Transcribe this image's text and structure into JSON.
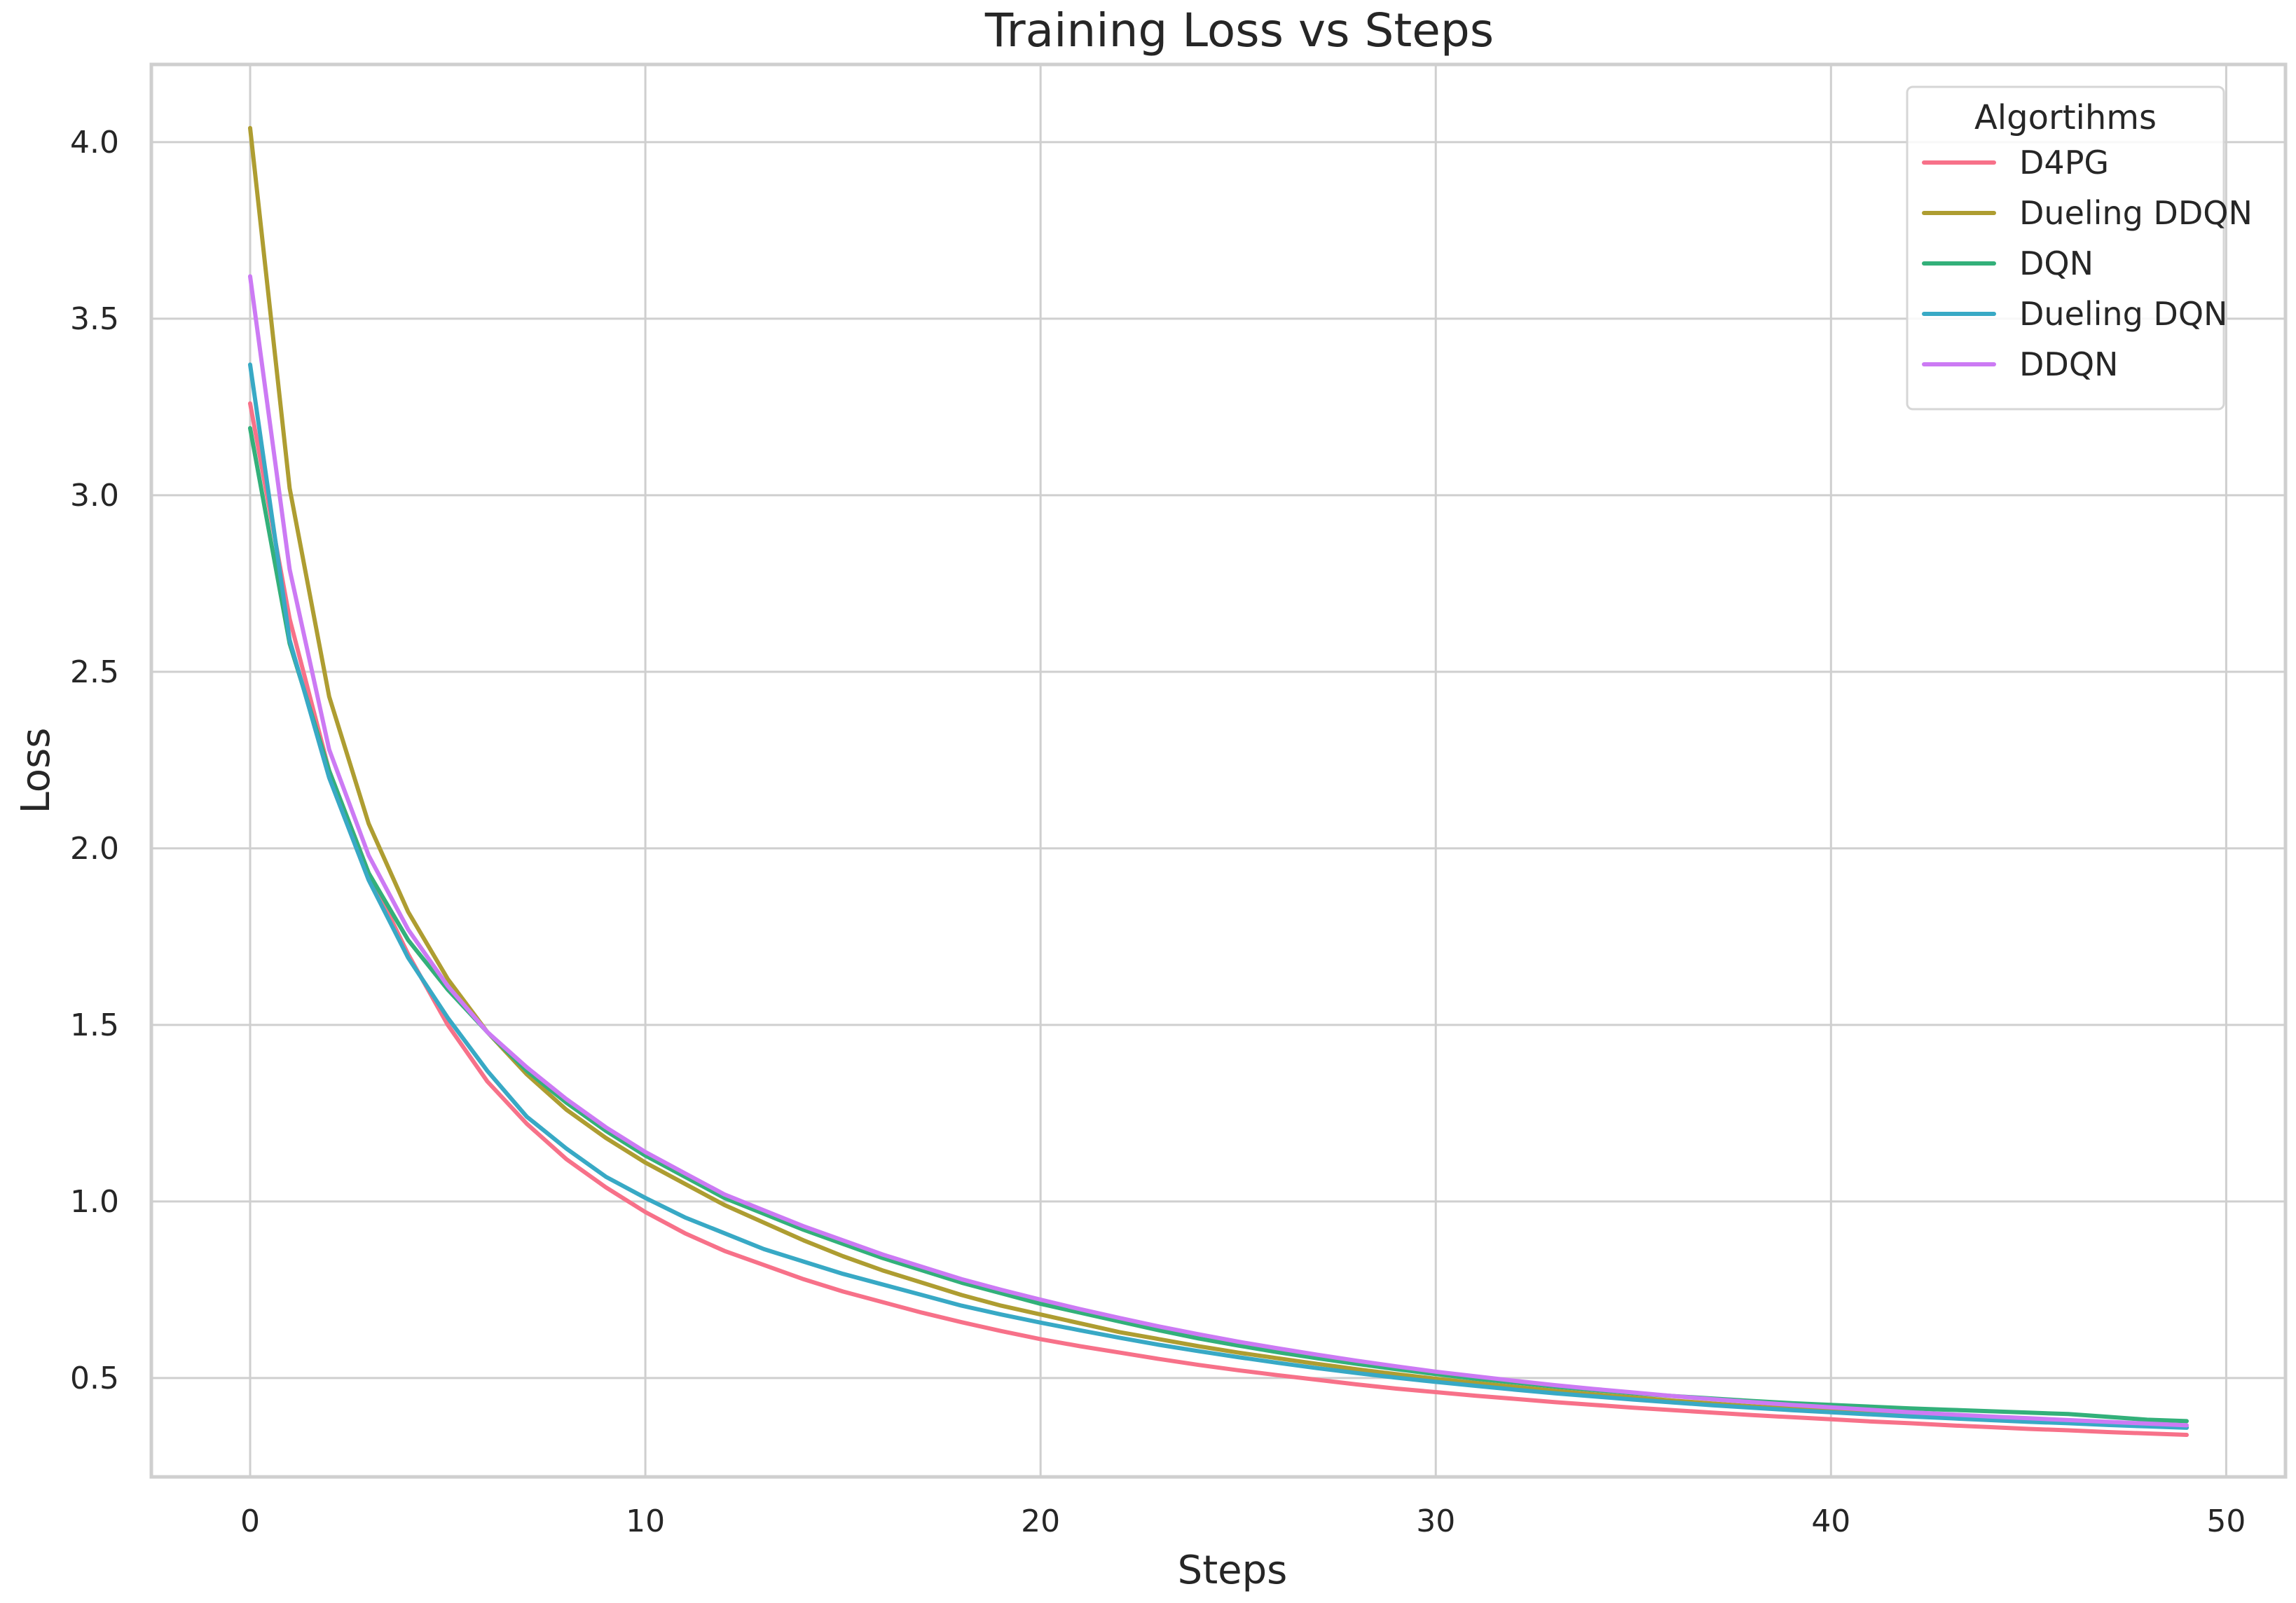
{
  "chart_data": {
    "type": "line",
    "title": "Training Loss vs Steps",
    "xlabel": "Steps",
    "ylabel": "Loss",
    "xlim": [
      -2.5,
      51.5
    ],
    "ylim": [
      0.22,
      4.22
    ],
    "xticks": [
      0,
      10,
      20,
      30,
      40,
      50
    ],
    "yticks": [
      0.5,
      1.0,
      1.5,
      2.0,
      2.5,
      3.0,
      3.5,
      4.0
    ],
    "xtick_labels": [
      "0",
      "10",
      "20",
      "30",
      "40",
      "50"
    ],
    "ytick_labels": [
      "0.5",
      "1.0",
      "1.5",
      "2.0",
      "2.5",
      "3.0",
      "3.5",
      "4.0"
    ],
    "grid": true,
    "legend_title": "Algortihms",
    "legend_position": "top-right",
    "x": [
      0,
      1,
      2,
      3,
      4,
      5,
      6,
      7,
      8,
      9,
      10,
      11,
      12,
      13,
      14,
      15,
      16,
      17,
      18,
      19,
      20,
      21,
      22,
      23,
      24,
      25,
      26,
      27,
      28,
      29,
      30,
      31,
      32,
      33,
      34,
      35,
      36,
      37,
      38,
      39,
      40,
      41,
      42,
      43,
      44,
      45,
      46,
      47,
      48,
      49
    ],
    "series": [
      {
        "name": "D4PG",
        "color": "#f77189",
        "values": [
          3.26,
          2.65,
          2.22,
          1.93,
          1.7,
          1.5,
          1.34,
          1.22,
          1.12,
          1.04,
          0.97,
          0.91,
          0.86,
          0.82,
          0.78,
          0.745,
          0.715,
          0.685,
          0.658,
          0.633,
          0.61,
          0.59,
          0.572,
          0.554,
          0.537,
          0.522,
          0.508,
          0.495,
          0.482,
          0.47,
          0.46,
          0.45,
          0.441,
          0.432,
          0.424,
          0.416,
          0.409,
          0.402,
          0.395,
          0.389,
          0.383,
          0.377,
          0.372,
          0.366,
          0.361,
          0.356,
          0.352,
          0.347,
          0.343,
          0.339
        ]
      },
      {
        "name": "Dueling DDQN",
        "color": "#ae9d31",
        "values": [
          4.04,
          3.02,
          2.43,
          2.07,
          1.82,
          1.63,
          1.48,
          1.36,
          1.26,
          1.18,
          1.11,
          1.05,
          0.99,
          0.94,
          0.89,
          0.845,
          0.805,
          0.77,
          0.735,
          0.705,
          0.68,
          0.655,
          0.63,
          0.61,
          0.59,
          0.572,
          0.556,
          0.54,
          0.525,
          0.511,
          0.498,
          0.486,
          0.475,
          0.464,
          0.454,
          0.445,
          0.436,
          0.428,
          0.42,
          0.413,
          0.406,
          0.4,
          0.394,
          0.388,
          0.383,
          0.378,
          0.373,
          0.368,
          0.364,
          0.36
        ]
      },
      {
        "name": "DQN",
        "color": "#33b07a",
        "values": [
          3.19,
          2.58,
          2.22,
          1.93,
          1.74,
          1.6,
          1.48,
          1.37,
          1.28,
          1.2,
          1.13,
          1.07,
          1.01,
          0.965,
          0.92,
          0.88,
          0.84,
          0.805,
          0.77,
          0.74,
          0.71,
          0.685,
          0.66,
          0.635,
          0.612,
          0.592,
          0.573,
          0.556,
          0.54,
          0.525,
          0.511,
          0.498,
          0.487,
          0.476,
          0.466,
          0.457,
          0.449,
          0.442,
          0.435,
          0.429,
          0.424,
          0.419,
          0.414,
          0.41,
          0.406,
          0.402,
          0.398,
          0.39,
          0.382,
          0.378
        ]
      },
      {
        "name": "Dueling DQN",
        "color": "#38a9c5",
        "values": [
          3.37,
          2.59,
          2.2,
          1.91,
          1.69,
          1.52,
          1.37,
          1.24,
          1.15,
          1.07,
          1.01,
          0.955,
          0.91,
          0.865,
          0.83,
          0.795,
          0.765,
          0.735,
          0.705,
          0.68,
          0.657,
          0.635,
          0.614,
          0.594,
          0.576,
          0.559,
          0.543,
          0.528,
          0.514,
          0.501,
          0.489,
          0.478,
          0.467,
          0.457,
          0.448,
          0.439,
          0.431,
          0.423,
          0.416,
          0.409,
          0.403,
          0.397,
          0.391,
          0.386,
          0.381,
          0.376,
          0.372,
          0.367,
          0.363,
          0.359
        ]
      },
      {
        "name": "DDQN",
        "color": "#cc7af4",
        "values": [
          3.62,
          2.79,
          2.28,
          1.98,
          1.77,
          1.61,
          1.48,
          1.38,
          1.29,
          1.21,
          1.14,
          1.08,
          1.02,
          0.975,
          0.93,
          0.89,
          0.85,
          0.815,
          0.78,
          0.75,
          0.722,
          0.695,
          0.67,
          0.646,
          0.624,
          0.603,
          0.584,
          0.566,
          0.549,
          0.533,
          0.518,
          0.505,
          0.492,
          0.48,
          0.469,
          0.459,
          0.449,
          0.44,
          0.432,
          0.424,
          0.417,
          0.41,
          0.403,
          0.397,
          0.391,
          0.386,
          0.381,
          0.376,
          0.371,
          0.366
        ]
      }
    ]
  }
}
